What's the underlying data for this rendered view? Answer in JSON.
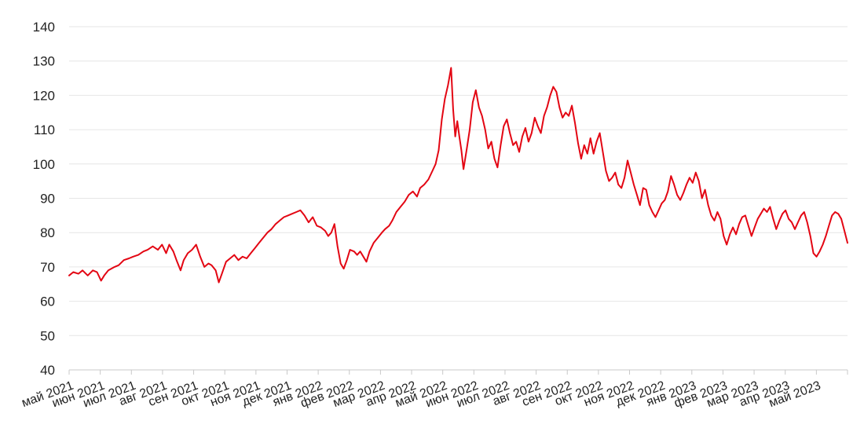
{
  "chart_data": {
    "type": "line",
    "title": "",
    "xlabel": "",
    "ylabel": "",
    "ylim": [
      40,
      140
    ],
    "y_ticks": [
      40,
      50,
      60,
      70,
      80,
      90,
      100,
      110,
      120,
      130,
      140
    ],
    "x_tick_labels": [
      "май 2021",
      "июн 2021",
      "июл 2021",
      "авг 2021",
      "сен 2021",
      "окт 2021",
      "ноя 2021",
      "дек 2021",
      "янв 2022",
      "фев 2022",
      "мар 2022",
      "апр 2022",
      "май 2022",
      "июн 2022",
      "июл 2022",
      "авг 2022",
      "сен 2022",
      "окт 2022",
      "ноя 2022",
      "дек 2022",
      "янв 2023",
      "фев 2023",
      "мар 2023",
      "апр 2023",
      "май 2023"
    ],
    "x_range": [
      "2021-05-01",
      "2023-05-25"
    ],
    "grid": true,
    "legend": "none",
    "series": [
      {
        "color": "#e30613",
        "points": [
          [
            "2021-05-01",
            67.5
          ],
          [
            "2021-05-05",
            68.5
          ],
          [
            "2021-05-10",
            68.0
          ],
          [
            "2021-05-14",
            69.0
          ],
          [
            "2021-05-19",
            67.5
          ],
          [
            "2021-05-24",
            69.0
          ],
          [
            "2021-05-28",
            68.5
          ],
          [
            "2021-06-01",
            66.0
          ],
          [
            "2021-06-04",
            67.5
          ],
          [
            "2021-06-08",
            69.0
          ],
          [
            "2021-06-14",
            70.0
          ],
          [
            "2021-06-18",
            70.5
          ],
          [
            "2021-06-23",
            72.0
          ],
          [
            "2021-06-28",
            72.5
          ],
          [
            "2021-07-02",
            73.0
          ],
          [
            "2021-07-07",
            73.5
          ],
          [
            "2021-07-12",
            74.5
          ],
          [
            "2021-07-16",
            75.0
          ],
          [
            "2021-07-21",
            76.0
          ],
          [
            "2021-07-26",
            75.0
          ],
          [
            "2021-07-30",
            76.5
          ],
          [
            "2021-08-03",
            74.0
          ],
          [
            "2021-08-06",
            76.5
          ],
          [
            "2021-08-10",
            74.5
          ],
          [
            "2021-08-13",
            72.0
          ],
          [
            "2021-08-17",
            69.0
          ],
          [
            "2021-08-20",
            72.0
          ],
          [
            "2021-08-24",
            74.0
          ],
          [
            "2021-08-28",
            75.0
          ],
          [
            "2021-09-01",
            76.5
          ],
          [
            "2021-09-05",
            73.0
          ],
          [
            "2021-09-09",
            70.0
          ],
          [
            "2021-09-13",
            71.0
          ],
          [
            "2021-09-16",
            70.5
          ],
          [
            "2021-09-20",
            69.0
          ],
          [
            "2021-09-23",
            65.5
          ],
          [
            "2021-09-26",
            68.0
          ],
          [
            "2021-09-30",
            71.5
          ],
          [
            "2021-10-04",
            72.5
          ],
          [
            "2021-10-08",
            73.5
          ],
          [
            "2021-10-12",
            72.0
          ],
          [
            "2021-10-16",
            73.0
          ],
          [
            "2021-10-20",
            72.5
          ],
          [
            "2021-10-24",
            74.0
          ],
          [
            "2021-10-28",
            75.5
          ],
          [
            "2021-11-01",
            77.0
          ],
          [
            "2021-11-05",
            78.5
          ],
          [
            "2021-11-09",
            80.0
          ],
          [
            "2021-11-13",
            81.0
          ],
          [
            "2021-11-17",
            82.5
          ],
          [
            "2021-11-21",
            83.5
          ],
          [
            "2021-11-25",
            84.5
          ],
          [
            "2021-11-29",
            85.0
          ],
          [
            "2021-12-03",
            85.5
          ],
          [
            "2021-12-07",
            86.0
          ],
          [
            "2021-12-11",
            86.5
          ],
          [
            "2021-12-15",
            85.0
          ],
          [
            "2021-12-19",
            83.0
          ],
          [
            "2021-12-23",
            84.5
          ],
          [
            "2021-12-27",
            82.0
          ],
          [
            "2021-12-31",
            81.5
          ],
          [
            "2022-01-04",
            80.5
          ],
          [
            "2022-01-07",
            79.0
          ],
          [
            "2022-01-10",
            80.0
          ],
          [
            "2022-01-13",
            82.5
          ],
          [
            "2022-01-16",
            76.0
          ],
          [
            "2022-01-19",
            71.0
          ],
          [
            "2022-01-22",
            69.5
          ],
          [
            "2022-01-25",
            72.0
          ],
          [
            "2022-01-28",
            75.0
          ],
          [
            "2022-02-01",
            74.5
          ],
          [
            "2022-02-04",
            73.5
          ],
          [
            "2022-02-07",
            74.5
          ],
          [
            "2022-02-10",
            73.0
          ],
          [
            "2022-02-13",
            71.5
          ],
          [
            "2022-02-16",
            74.5
          ],
          [
            "2022-02-20",
            77.0
          ],
          [
            "2022-02-24",
            78.5
          ],
          [
            "2022-02-28",
            80.0
          ],
          [
            "2022-03-03",
            81.0
          ],
          [
            "2022-03-07",
            82.0
          ],
          [
            "2022-03-10",
            83.5
          ],
          [
            "2022-03-14",
            86.0
          ],
          [
            "2022-03-18",
            87.5
          ],
          [
            "2022-03-22",
            89.0
          ],
          [
            "2022-03-26",
            91.0
          ],
          [
            "2022-03-30",
            92.0
          ],
          [
            "2022-04-03",
            90.5
          ],
          [
            "2022-04-06",
            93.0
          ],
          [
            "2022-04-10",
            94.0
          ],
          [
            "2022-04-14",
            95.5
          ],
          [
            "2022-04-18",
            98.0
          ],
          [
            "2022-04-21",
            100.0
          ],
          [
            "2022-04-24",
            104.0
          ],
          [
            "2022-04-27",
            113.0
          ],
          [
            "2022-04-30",
            119.0
          ],
          [
            "2022-05-03",
            123.0
          ],
          [
            "2022-05-06",
            128.0
          ],
          [
            "2022-05-08",
            116.0
          ],
          [
            "2022-05-10",
            108.0
          ],
          [
            "2022-05-12",
            112.5
          ],
          [
            "2022-05-14",
            108.0
          ],
          [
            "2022-05-16",
            104.0
          ],
          [
            "2022-05-18",
            98.5
          ],
          [
            "2022-05-21",
            104.0
          ],
          [
            "2022-05-24",
            110.0
          ],
          [
            "2022-05-27",
            118.0
          ],
          [
            "2022-05-30",
            121.5
          ],
          [
            "2022-06-02",
            116.5
          ],
          [
            "2022-06-05",
            114.0
          ],
          [
            "2022-06-08",
            110.0
          ],
          [
            "2022-06-11",
            104.5
          ],
          [
            "2022-06-14",
            106.5
          ],
          [
            "2022-06-17",
            101.5
          ],
          [
            "2022-06-20",
            99.0
          ],
          [
            "2022-06-23",
            105.5
          ],
          [
            "2022-06-26",
            111.0
          ],
          [
            "2022-06-29",
            113.0
          ],
          [
            "2022-07-02",
            109.0
          ],
          [
            "2022-07-05",
            105.5
          ],
          [
            "2022-07-08",
            106.5
          ],
          [
            "2022-07-11",
            103.5
          ],
          [
            "2022-07-14",
            108.0
          ],
          [
            "2022-07-17",
            110.5
          ],
          [
            "2022-07-20",
            106.5
          ],
          [
            "2022-07-23",
            109.0
          ],
          [
            "2022-07-26",
            113.5
          ],
          [
            "2022-07-29",
            111.0
          ],
          [
            "2022-08-01",
            109.0
          ],
          [
            "2022-08-04",
            114.0
          ],
          [
            "2022-08-07",
            116.5
          ],
          [
            "2022-08-10",
            120.0
          ],
          [
            "2022-08-13",
            122.5
          ],
          [
            "2022-08-16",
            121.0
          ],
          [
            "2022-08-19",
            116.5
          ],
          [
            "2022-08-22",
            113.5
          ],
          [
            "2022-08-25",
            115.0
          ],
          [
            "2022-08-28",
            114.0
          ],
          [
            "2022-08-31",
            117.0
          ],
          [
            "2022-09-03",
            112.0
          ],
          [
            "2022-09-06",
            106.0
          ],
          [
            "2022-09-09",
            101.5
          ],
          [
            "2022-09-12",
            105.5
          ],
          [
            "2022-09-15",
            103.0
          ],
          [
            "2022-09-18",
            107.5
          ],
          [
            "2022-09-21",
            103.0
          ],
          [
            "2022-09-24",
            106.5
          ],
          [
            "2022-09-27",
            109.0
          ],
          [
            "2022-09-30",
            103.5
          ],
          [
            "2022-10-03",
            98.0
          ],
          [
            "2022-10-06",
            95.0
          ],
          [
            "2022-10-09",
            96.0
          ],
          [
            "2022-10-12",
            97.5
          ],
          [
            "2022-10-15",
            94.0
          ],
          [
            "2022-10-18",
            93.0
          ],
          [
            "2022-10-21",
            96.0
          ],
          [
            "2022-10-24",
            101.0
          ],
          [
            "2022-10-27",
            97.5
          ],
          [
            "2022-10-30",
            94.0
          ],
          [
            "2022-11-02",
            91.0
          ],
          [
            "2022-11-05",
            88.0
          ],
          [
            "2022-11-08",
            93.0
          ],
          [
            "2022-11-11",
            92.5
          ],
          [
            "2022-11-14",
            88.0
          ],
          [
            "2022-11-17",
            86.0
          ],
          [
            "2022-11-20",
            84.5
          ],
          [
            "2022-11-23",
            86.5
          ],
          [
            "2022-11-26",
            88.5
          ],
          [
            "2022-11-29",
            89.5
          ],
          [
            "2022-12-02",
            92.0
          ],
          [
            "2022-12-05",
            96.5
          ],
          [
            "2022-12-08",
            94.0
          ],
          [
            "2022-12-11",
            91.0
          ],
          [
            "2022-12-14",
            89.5
          ],
          [
            "2022-12-17",
            91.5
          ],
          [
            "2022-12-20",
            94.0
          ],
          [
            "2022-12-23",
            96.0
          ],
          [
            "2022-12-26",
            94.5
          ],
          [
            "2022-12-29",
            97.5
          ],
          [
            "2023-01-01",
            95.0
          ],
          [
            "2023-01-04",
            90.0
          ],
          [
            "2023-01-07",
            92.5
          ],
          [
            "2023-01-10",
            88.0
          ],
          [
            "2023-01-13",
            85.0
          ],
          [
            "2023-01-16",
            83.5
          ],
          [
            "2023-01-19",
            86.0
          ],
          [
            "2023-01-22",
            84.0
          ],
          [
            "2023-01-25",
            79.0
          ],
          [
            "2023-01-28",
            76.5
          ],
          [
            "2023-01-31",
            79.5
          ],
          [
            "2023-02-03",
            81.5
          ],
          [
            "2023-02-06",
            79.5
          ],
          [
            "2023-02-09",
            82.5
          ],
          [
            "2023-02-12",
            84.5
          ],
          [
            "2023-02-15",
            85.0
          ],
          [
            "2023-02-18",
            82.0
          ],
          [
            "2023-02-21",
            79.0
          ],
          [
            "2023-02-24",
            81.5
          ],
          [
            "2023-02-27",
            84.0
          ],
          [
            "2023-03-02",
            85.5
          ],
          [
            "2023-03-05",
            87.0
          ],
          [
            "2023-03-08",
            86.0
          ],
          [
            "2023-03-11",
            87.5
          ],
          [
            "2023-03-14",
            84.0
          ],
          [
            "2023-03-17",
            81.0
          ],
          [
            "2023-03-20",
            83.5
          ],
          [
            "2023-03-23",
            85.5
          ],
          [
            "2023-03-26",
            86.5
          ],
          [
            "2023-03-29",
            84.0
          ],
          [
            "2023-04-01",
            83.0
          ],
          [
            "2023-04-04",
            81.0
          ],
          [
            "2023-04-07",
            83.0
          ],
          [
            "2023-04-10",
            85.0
          ],
          [
            "2023-04-13",
            86.0
          ],
          [
            "2023-04-16",
            83.0
          ],
          [
            "2023-04-19",
            79.0
          ],
          [
            "2023-04-22",
            74.0
          ],
          [
            "2023-04-25",
            73.0
          ],
          [
            "2023-04-28",
            74.5
          ],
          [
            "2023-05-01",
            76.5
          ],
          [
            "2023-05-04",
            79.0
          ],
          [
            "2023-05-07",
            82.0
          ],
          [
            "2023-05-10",
            85.0
          ],
          [
            "2023-05-13",
            86.0
          ],
          [
            "2023-05-16",
            85.5
          ],
          [
            "2023-05-19",
            84.0
          ],
          [
            "2023-05-22",
            80.5
          ],
          [
            "2023-05-25",
            77.0
          ]
        ]
      }
    ]
  }
}
